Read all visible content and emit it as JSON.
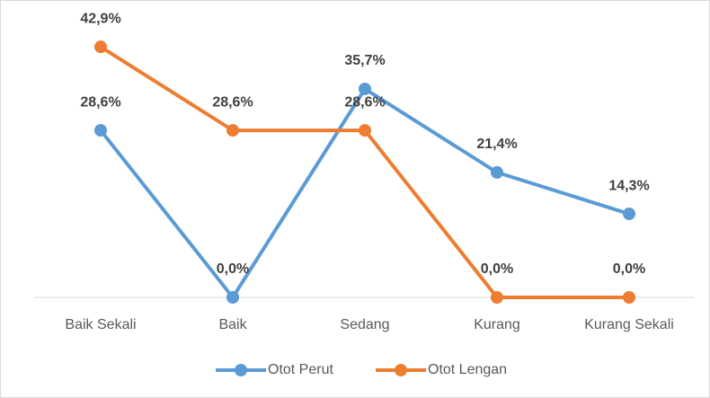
{
  "chart_data": {
    "type": "line",
    "categories": [
      "Baik Sekali",
      "Baik",
      "Sedang",
      "Kurang",
      "Kurang Sekali"
    ],
    "series": [
      {
        "name": "Otot Perut",
        "color": "#5b9bd5",
        "values": [
          28.6,
          0,
          35.7,
          21.4,
          14.3
        ],
        "value_labels": [
          "28,6%",
          "0,0%",
          "35,7%",
          "21,4%",
          "14,3%"
        ]
      },
      {
        "name": "Otot Lengan",
        "color": "#ed7d31",
        "values": [
          42.9,
          28.6,
          28.6,
          0,
          0
        ],
        "value_labels": [
          "42,9%",
          "28,6%",
          "28,6%",
          "0,0%",
          "0,0%"
        ]
      }
    ],
    "ylim": [
      0,
      50
    ],
    "legend": "bottom"
  }
}
